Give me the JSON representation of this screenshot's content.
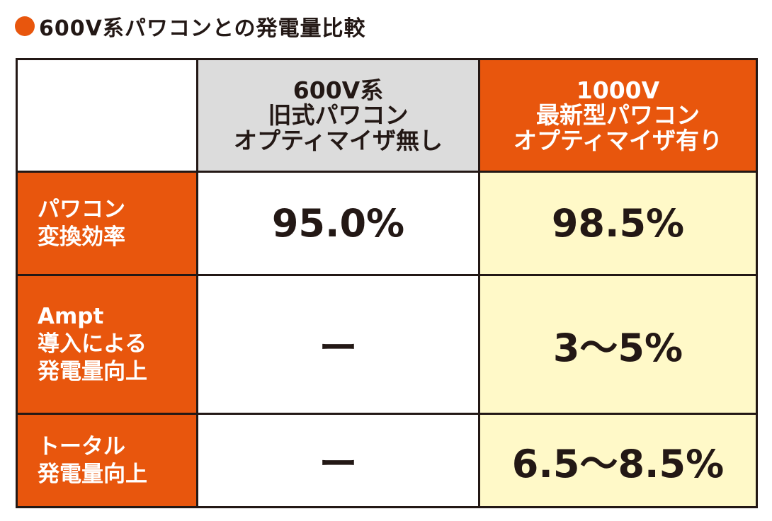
{
  "title": "600V系パワコンとの発電量比較",
  "colors": {
    "accent": "#e8560d",
    "old_header_bg": "#dcdcdc",
    "highlight_bg": "#fff9c8",
    "text": "#231815"
  },
  "table": {
    "headers": {
      "old": [
        "600V系",
        "旧式パワコン",
        "オプティマイザ無し"
      ],
      "new": [
        "1000V",
        "最新型パワコン",
        "オプティマイザ有り"
      ]
    },
    "rows": [
      {
        "label": [
          "パワコン",
          "変換効率"
        ],
        "old": "95.0%",
        "new": "98.5%"
      },
      {
        "label": [
          "Ampt",
          "導入による",
          "発電量向上"
        ],
        "old": "ー",
        "new": "3〜5%"
      },
      {
        "label": [
          "トータル",
          "発電量向上"
        ],
        "old": "ー",
        "new": "6.5〜8.5%"
      }
    ]
  }
}
